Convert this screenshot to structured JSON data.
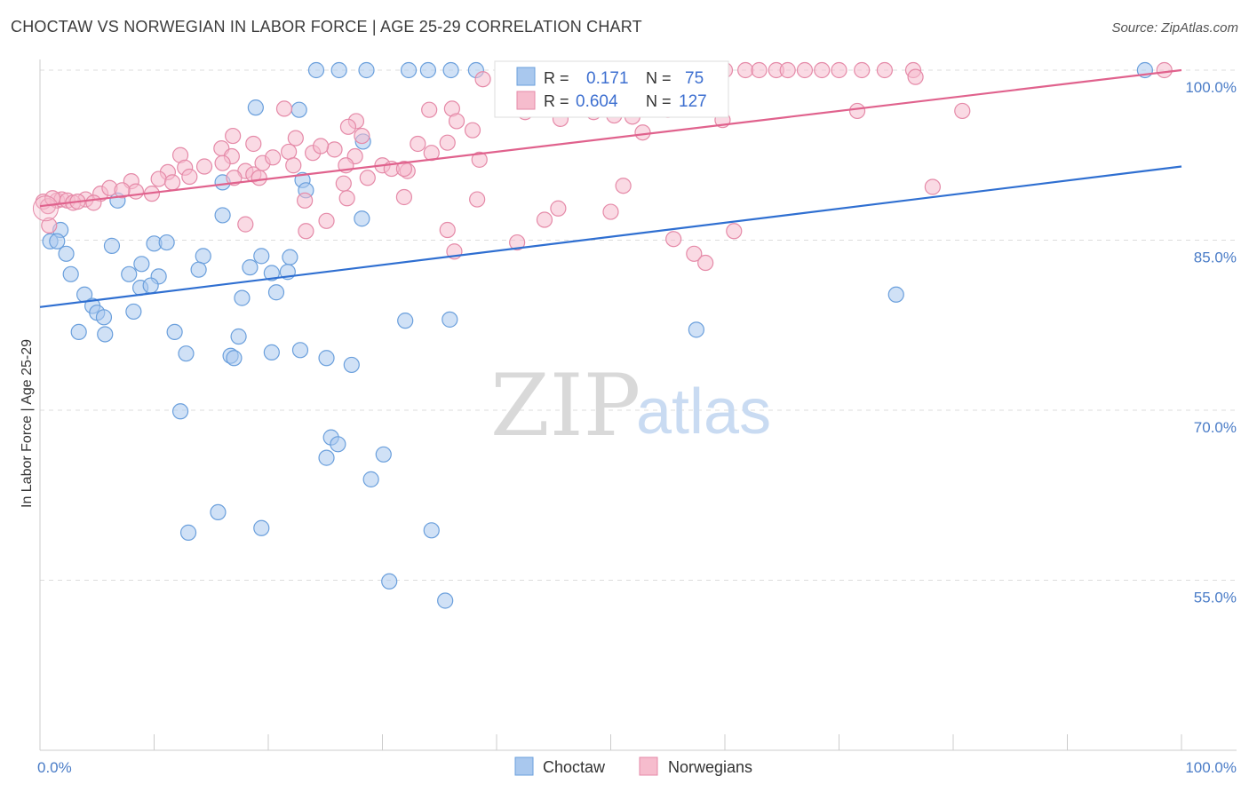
{
  "header": {
    "title": "CHOCTAW VS NORWEGIAN IN LABOR FORCE | AGE 25-29 CORRELATION CHART",
    "source": "Source: ZipAtlas.com"
  },
  "legend_box": {
    "rows": [
      {
        "r_label": "R =",
        "r_value": "0.171",
        "n_label": "N =",
        "n_value": "75"
      },
      {
        "r_label": "R =",
        "r_value": "0.604",
        "n_label": "N =",
        "n_value": "127"
      }
    ]
  },
  "bottom_legend": [
    "Choctaw",
    "Norwegians"
  ],
  "watermark": {
    "zip": "ZIP",
    "atlas": "atlas"
  },
  "colors": {
    "choctaw_fill": "#a9c8ee",
    "choctaw_stroke": "#6a9fdc",
    "choctaw_line": "#2f6fd1",
    "norwegian_fill": "#f6bccd",
    "norwegian_stroke": "#e58aa8",
    "norwegian_line": "#e0628d",
    "grid": "#dddddd",
    "tick_label": "#4a7cc7"
  },
  "chart_data": {
    "type": "scatter",
    "title": "CHOCTAW VS NORWEGIAN IN LABOR FORCE | AGE 25-29 CORRELATION CHART",
    "xlabel": "",
    "ylabel": "In Labor Force | Age 25-29",
    "xlim": [
      0,
      100
    ],
    "ylim": [
      40,
      100
    ],
    "x_tick_labels": [
      "0.0%",
      "100.0%"
    ],
    "y_ticks": [
      55,
      70,
      85,
      100
    ],
    "y_tick_labels": [
      "55.0%",
      "70.0%",
      "85.0%",
      "100.0%"
    ],
    "grid": true,
    "legend_position": "top-center",
    "series": [
      {
        "name": "Choctaw",
        "R": 0.171,
        "N": 75,
        "trend": {
          "x": [
            0,
            100
          ],
          "y": [
            79.1,
            91.5
          ]
        },
        "points": [
          [
            24.2,
            100.0
          ],
          [
            26.2,
            100.0
          ],
          [
            28.6,
            100.0
          ],
          [
            32.3,
            100.0
          ],
          [
            34.0,
            100.0
          ],
          [
            36.0,
            100.0
          ],
          [
            38.2,
            100.0
          ],
          [
            96.8,
            100.0
          ],
          [
            18.9,
            96.7
          ],
          [
            22.7,
            96.5
          ],
          [
            28.3,
            93.7
          ],
          [
            16.0,
            90.1
          ],
          [
            23.0,
            90.3
          ],
          [
            23.3,
            89.4
          ],
          [
            6.8,
            88.5
          ],
          [
            16.0,
            87.2
          ],
          [
            28.2,
            86.9
          ],
          [
            1.8,
            85.9
          ],
          [
            0.9,
            84.9
          ],
          [
            1.5,
            84.9
          ],
          [
            6.3,
            84.5
          ],
          [
            10.0,
            84.7
          ],
          [
            11.1,
            84.8
          ],
          [
            2.3,
            83.8
          ],
          [
            14.3,
            83.6
          ],
          [
            19.4,
            83.6
          ],
          [
            21.9,
            83.5
          ],
          [
            8.9,
            82.9
          ],
          [
            13.9,
            82.4
          ],
          [
            18.4,
            82.6
          ],
          [
            20.3,
            82.1
          ],
          [
            21.7,
            82.2
          ],
          [
            2.7,
            82.0
          ],
          [
            7.8,
            82.0
          ],
          [
            10.4,
            81.8
          ],
          [
            8.8,
            80.8
          ],
          [
            9.7,
            81.0
          ],
          [
            3.9,
            80.2
          ],
          [
            17.7,
            79.9
          ],
          [
            20.7,
            80.4
          ],
          [
            4.6,
            79.2
          ],
          [
            5.0,
            78.6
          ],
          [
            8.2,
            78.7
          ],
          [
            75.0,
            80.2
          ],
          [
            3.4,
            76.9
          ],
          [
            5.6,
            78.2
          ],
          [
            32.0,
            77.9
          ],
          [
            35.9,
            78.0
          ],
          [
            11.8,
            76.9
          ],
          [
            17.4,
            76.5
          ],
          [
            57.5,
            77.1
          ],
          [
            5.7,
            76.7
          ],
          [
            12.8,
            75.0
          ],
          [
            16.7,
            74.8
          ],
          [
            17.0,
            74.6
          ],
          [
            20.3,
            75.1
          ],
          [
            22.8,
            75.3
          ],
          [
            25.1,
            74.6
          ],
          [
            27.3,
            74.0
          ],
          [
            12.3,
            69.9
          ],
          [
            25.5,
            67.6
          ],
          [
            26.1,
            67.0
          ],
          [
            25.1,
            65.8
          ],
          [
            30.1,
            66.1
          ],
          [
            29.0,
            63.9
          ],
          [
            15.6,
            61.0
          ],
          [
            13.0,
            59.2
          ],
          [
            19.4,
            59.6
          ],
          [
            34.3,
            59.4
          ],
          [
            30.6,
            54.9
          ],
          [
            35.5,
            53.2
          ]
        ]
      },
      {
        "name": "Norwegians",
        "R": 0.604,
        "N": 127,
        "trend": {
          "x": [
            0,
            100
          ],
          "y": [
            88.0,
            100.0
          ]
        },
        "points": [
          [
            50.5,
            100.0
          ],
          [
            50.8,
            100.0
          ],
          [
            51.5,
            100.0
          ],
          [
            56.8,
            100.0
          ],
          [
            58.5,
            100.0
          ],
          [
            60.0,
            100.0
          ],
          [
            61.8,
            100.0
          ],
          [
            63.0,
            100.0
          ],
          [
            64.5,
            100.0
          ],
          [
            65.5,
            100.0
          ],
          [
            67.0,
            100.0
          ],
          [
            68.5,
            100.0
          ],
          [
            70.0,
            100.0
          ],
          [
            72.0,
            100.0
          ],
          [
            74.0,
            100.0
          ],
          [
            76.5,
            100.0
          ],
          [
            98.5,
            100.0
          ],
          [
            38.8,
            99.2
          ],
          [
            51.2,
            98.8
          ],
          [
            54.2,
            99.5
          ],
          [
            56.4,
            98.6
          ],
          [
            41.5,
            97.6
          ],
          [
            51.2,
            97.8
          ],
          [
            52.6,
            97.0
          ],
          [
            42.5,
            96.3
          ],
          [
            48.5,
            96.3
          ],
          [
            50.3,
            96.0
          ],
          [
            21.4,
            96.6
          ],
          [
            34.1,
            96.5
          ],
          [
            36.1,
            96.6
          ],
          [
            27.7,
            95.5
          ],
          [
            45.6,
            95.7
          ],
          [
            51.9,
            95.9
          ],
          [
            55.0,
            96.5
          ],
          [
            71.6,
            96.4
          ],
          [
            80.8,
            96.4
          ],
          [
            27.0,
            95.0
          ],
          [
            36.5,
            95.5
          ],
          [
            37.9,
            94.7
          ],
          [
            52.8,
            94.5
          ],
          [
            59.8,
            95.6
          ],
          [
            16.9,
            94.2
          ],
          [
            22.4,
            94.0
          ],
          [
            25.8,
            93.0
          ],
          [
            28.2,
            94.2
          ],
          [
            33.1,
            93.5
          ],
          [
            35.7,
            93.6
          ],
          [
            15.9,
            93.1
          ],
          [
            18.7,
            93.5
          ],
          [
            21.8,
            92.8
          ],
          [
            23.9,
            92.7
          ],
          [
            24.6,
            93.3
          ],
          [
            27.6,
            92.4
          ],
          [
            12.3,
            92.5
          ],
          [
            16.8,
            92.4
          ],
          [
            19.5,
            91.8
          ],
          [
            22.2,
            91.6
          ],
          [
            26.8,
            91.6
          ],
          [
            30.0,
            91.6
          ],
          [
            32.2,
            91.1
          ],
          [
            34.3,
            92.7
          ],
          [
            38.5,
            92.1
          ],
          [
            11.2,
            91.0
          ],
          [
            12.7,
            91.4
          ],
          [
            14.4,
            91.5
          ],
          [
            16.0,
            91.8
          ],
          [
            18.0,
            91.1
          ],
          [
            20.4,
            92.3
          ],
          [
            30.8,
            91.3
          ],
          [
            31.9,
            91.3
          ],
          [
            10.4,
            90.4
          ],
          [
            13.1,
            90.6
          ],
          [
            17.0,
            90.5
          ],
          [
            26.6,
            90.0
          ],
          [
            28.7,
            90.5
          ],
          [
            8.0,
            90.2
          ],
          [
            8.4,
            89.3
          ],
          [
            9.8,
            89.1
          ],
          [
            11.6,
            90.1
          ],
          [
            18.7,
            90.8
          ],
          [
            19.2,
            90.5
          ],
          [
            5.3,
            89.1
          ],
          [
            6.1,
            89.6
          ],
          [
            7.2,
            89.4
          ],
          [
            4.0,
            88.6
          ],
          [
            4.7,
            88.3
          ],
          [
            1.5,
            88.5
          ],
          [
            1.9,
            88.6
          ],
          [
            2.4,
            88.5
          ],
          [
            2.9,
            88.3
          ],
          [
            3.3,
            88.4
          ],
          [
            0.3,
            88.4
          ],
          [
            0.7,
            88.0
          ],
          [
            1.1,
            88.7
          ],
          [
            23.2,
            88.5
          ],
          [
            26.9,
            88.7
          ],
          [
            31.9,
            88.8
          ],
          [
            38.3,
            88.6
          ],
          [
            51.1,
            89.8
          ],
          [
            78.2,
            89.7
          ],
          [
            76.7,
            99.4
          ],
          [
            23.3,
            85.8
          ],
          [
            25.1,
            86.7
          ],
          [
            45.4,
            87.8
          ],
          [
            50.0,
            87.5
          ],
          [
            55.5,
            85.1
          ],
          [
            41.8,
            84.8
          ],
          [
            44.2,
            86.8
          ],
          [
            57.3,
            83.8
          ],
          [
            60.8,
            85.8
          ],
          [
            18.0,
            86.4
          ],
          [
            35.7,
            85.9
          ],
          [
            0.8,
            86.3
          ],
          [
            36.3,
            84.0
          ],
          [
            58.3,
            83.0
          ]
        ]
      }
    ]
  }
}
